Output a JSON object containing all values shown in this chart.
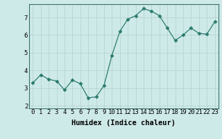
{
  "xlabel": "Humidex (Indice chaleur)",
  "x": [
    0,
    1,
    2,
    3,
    4,
    5,
    6,
    7,
    8,
    9,
    10,
    11,
    12,
    13,
    14,
    15,
    16,
    17,
    18,
    19,
    20,
    21,
    22,
    23
  ],
  "y": [
    3.3,
    3.75,
    3.5,
    3.4,
    2.9,
    3.45,
    3.25,
    2.45,
    2.5,
    3.15,
    4.85,
    6.2,
    6.9,
    7.1,
    7.5,
    7.35,
    7.1,
    6.4,
    5.7,
    6.0,
    6.4,
    6.1,
    6.05,
    6.75
  ],
  "line_color": "#2a7a6e",
  "marker": "D",
  "marker_size": 2.5,
  "bg_color": "#ceeae8",
  "grid_color": "#b8d4d2",
  "axes_bg": "#ceeae8",
  "xlim": [
    -0.5,
    23.5
  ],
  "ylim": [
    1.85,
    7.75
  ],
  "yticks": [
    2,
    3,
    4,
    5,
    6,
    7
  ],
  "xticks": [
    0,
    1,
    2,
    3,
    4,
    5,
    6,
    7,
    8,
    9,
    10,
    11,
    12,
    13,
    14,
    15,
    16,
    17,
    18,
    19,
    20,
    21,
    22,
    23
  ],
  "label_fontsize": 7.5,
  "tick_fontsize": 6.5,
  "spine_color": "#3a6e6a"
}
